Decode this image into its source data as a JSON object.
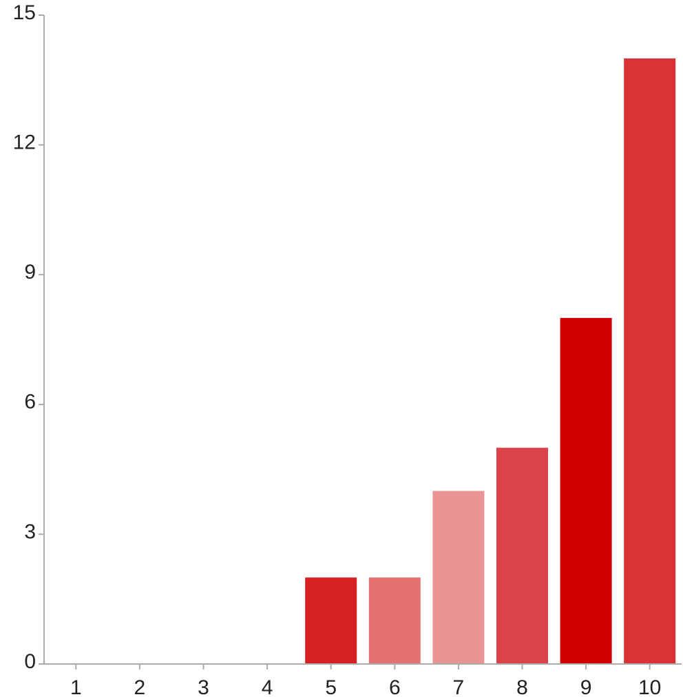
{
  "chart_data": {
    "type": "bar",
    "title": "",
    "xlabel": "",
    "ylabel": "",
    "categories": [
      "1",
      "2",
      "3",
      "4",
      "5",
      "6",
      "7",
      "8",
      "9",
      "10"
    ],
    "values": [
      0,
      0,
      0,
      0,
      2,
      2,
      4,
      5,
      8,
      14
    ],
    "ylim": [
      0,
      15
    ],
    "yticks": [
      0,
      3,
      6,
      9,
      12,
      15
    ],
    "grid": false,
    "legend": "none",
    "colors": [
      "#d9302b",
      "#d9302b",
      "#d9302b",
      "#d9302b",
      "#d62222",
      "#e57272",
      "#e99494",
      "#dc4348",
      "#d00000",
      "#d93335"
    ],
    "axis_color": "#aaaaaa",
    "text_color": "#222222"
  }
}
